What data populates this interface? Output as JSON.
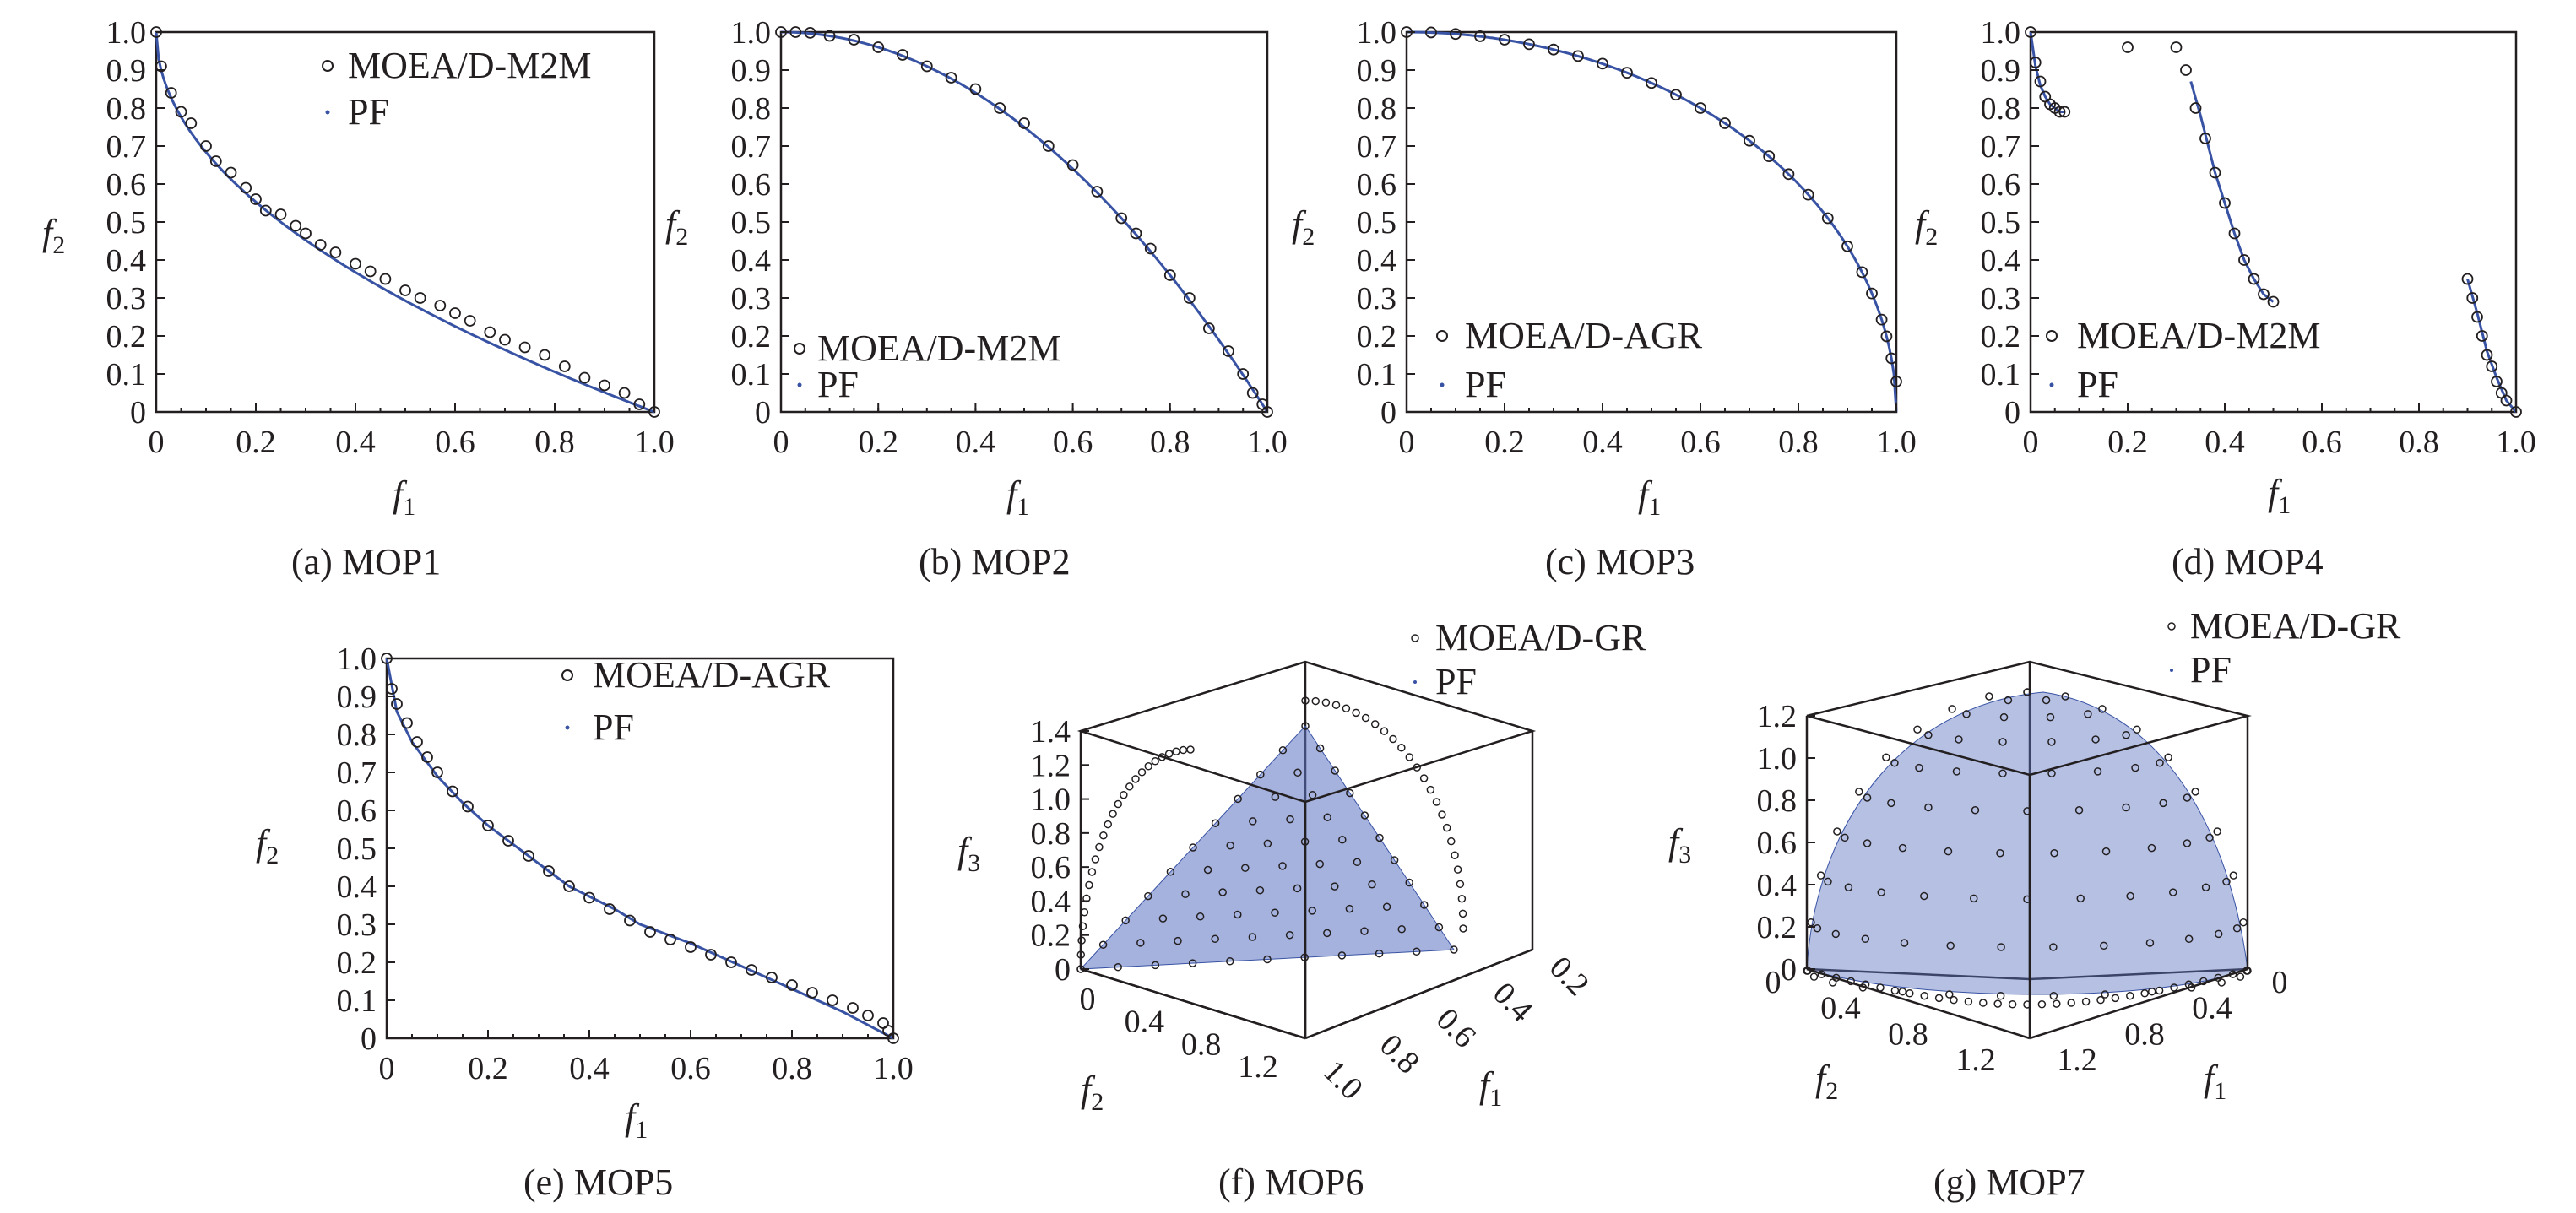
{
  "colors": {
    "pf": "#3953a4",
    "marker": "#231f20",
    "surface": "#5b73c1"
  },
  "chart_data": [
    {
      "type": "scatter",
      "caption": "(a) MOP1",
      "xlabel": "f",
      "xlabel_sub": "1",
      "ylabel": "f",
      "ylabel_sub": "2",
      "xlim": [
        0,
        1
      ],
      "ylim": [
        0,
        1
      ],
      "xticks": [
        "0",
        "0.2",
        "0.4",
        "0.6",
        "0.8",
        "1.0"
      ],
      "yticks": [
        "0",
        "0.1",
        "0.2",
        "0.3",
        "0.4",
        "0.5",
        "0.6",
        "0.7",
        "0.8",
        "0.9",
        "1.0"
      ],
      "legend": [
        "MOEA/D-M2M",
        "PF"
      ],
      "legend_position": "top-right",
      "series": [
        {
          "name": "MOEA/D-M2M",
          "x": [
            0,
            0.01,
            0.03,
            0.05,
            0.07,
            0.1,
            0.12,
            0.15,
            0.18,
            0.2,
            0.22,
            0.25,
            0.28,
            0.3,
            0.33,
            0.36,
            0.4,
            0.43,
            0.46,
            0.5,
            0.53,
            0.57,
            0.6,
            0.63,
            0.67,
            0.7,
            0.74,
            0.78,
            0.82,
            0.86,
            0.9,
            0.94,
            0.97,
            1.0
          ],
          "y": [
            1.0,
            0.91,
            0.84,
            0.79,
            0.76,
            0.7,
            0.66,
            0.63,
            0.59,
            0.56,
            0.53,
            0.52,
            0.49,
            0.47,
            0.44,
            0.42,
            0.39,
            0.37,
            0.35,
            0.32,
            0.3,
            0.28,
            0.26,
            0.24,
            0.21,
            0.19,
            0.17,
            0.15,
            0.12,
            0.09,
            0.07,
            0.05,
            0.02,
            0.0
          ]
        },
        {
          "name": "PF",
          "function": "1 - sqrt(x)"
        }
      ]
    },
    {
      "type": "scatter",
      "caption": "(b) MOP2",
      "xlabel": "f",
      "xlabel_sub": "1",
      "ylabel": "f",
      "ylabel_sub": "2",
      "xlim": [
        0,
        1
      ],
      "ylim": [
        0,
        1
      ],
      "xticks": [
        "0",
        "0.2",
        "0.4",
        "0.6",
        "0.8",
        "1.0"
      ],
      "yticks": [
        "0",
        "0.1",
        "0.2",
        "0.3",
        "0.4",
        "0.5",
        "0.6",
        "0.7",
        "0.8",
        "0.9",
        "1.0"
      ],
      "legend": [
        "MOEA/D-M2M",
        "PF"
      ],
      "legend_position": "bottom-left",
      "series": [
        {
          "name": "MOEA/D-M2M",
          "x": [
            0,
            0.03,
            0.06,
            0.1,
            0.15,
            0.2,
            0.25,
            0.3,
            0.35,
            0.4,
            0.45,
            0.5,
            0.55,
            0.6,
            0.65,
            0.7,
            0.73,
            0.76,
            0.8,
            0.84,
            0.88,
            0.92,
            0.95,
            0.97,
            0.99,
            1.0
          ],
          "y": [
            1.0,
            1.0,
            0.998,
            0.99,
            0.98,
            0.96,
            0.94,
            0.91,
            0.88,
            0.85,
            0.8,
            0.76,
            0.7,
            0.65,
            0.58,
            0.51,
            0.47,
            0.43,
            0.36,
            0.3,
            0.22,
            0.16,
            0.1,
            0.05,
            0.02,
            0.0
          ]
        },
        {
          "name": "PF",
          "function": "1 - x^2"
        }
      ]
    },
    {
      "type": "scatter",
      "caption": "(c) MOP3",
      "xlabel": "f",
      "xlabel_sub": "1",
      "ylabel": "f",
      "ylabel_sub": "2",
      "xlim": [
        0,
        1
      ],
      "ylim": [
        0,
        1
      ],
      "xticks": [
        "0",
        "0.2",
        "0.4",
        "0.6",
        "0.8",
        "1.0"
      ],
      "yticks": [
        "0",
        "0.1",
        "0.2",
        "0.3",
        "0.4",
        "0.5",
        "0.6",
        "0.7",
        "0.8",
        "0.9",
        "1.0"
      ],
      "legend": [
        "MOEA/D-AGR",
        "PF"
      ],
      "legend_position": "bottom-left",
      "series": [
        {
          "name": "MOEA/D-AGR",
          "x": [
            0,
            0.05,
            0.1,
            0.15,
            0.2,
            0.25,
            0.3,
            0.35,
            0.4,
            0.45,
            0.5,
            0.55,
            0.6,
            0.65,
            0.7,
            0.74,
            0.78,
            0.82,
            0.86,
            0.9,
            0.93,
            0.95,
            0.97,
            0.98,
            0.99,
            1.0
          ],
          "y": [
            1.0,
            0.999,
            0.995,
            0.989,
            0.98,
            0.968,
            0.954,
            0.937,
            0.917,
            0.893,
            0.866,
            0.835,
            0.8,
            0.76,
            0.714,
            0.673,
            0.626,
            0.572,
            0.51,
            0.436,
            0.368,
            0.312,
            0.243,
            0.199,
            0.141,
            0.08
          ]
        },
        {
          "name": "PF",
          "function": "sqrt(1 - x^2)"
        }
      ]
    },
    {
      "type": "scatter",
      "caption": "(d) MOP4",
      "xlabel": "f",
      "xlabel_sub": "1",
      "ylabel": "f",
      "ylabel_sub": "2",
      "xlim": [
        0,
        1
      ],
      "ylim": [
        0,
        1
      ],
      "xticks": [
        "0",
        "0.2",
        "0.4",
        "0.6",
        "0.8",
        "1.0"
      ],
      "yticks": [
        "0",
        "0.1",
        "0.2",
        "0.3",
        "0.4",
        "0.5",
        "0.6",
        "0.7",
        "0.8",
        "0.9",
        "1.0"
      ],
      "legend": [
        "MOEA/D-M2M",
        "PF"
      ],
      "legend_position": "bottom-left",
      "series": [
        {
          "name": "MOEA/D-M2M",
          "x": [
            0,
            0.01,
            0.02,
            0.03,
            0.04,
            0.05,
            0.06,
            0.07,
            0.2,
            0.3,
            0.32,
            0.34,
            0.36,
            0.38,
            0.4,
            0.42,
            0.44,
            0.46,
            0.48,
            0.5,
            0.9,
            0.91,
            0.92,
            0.93,
            0.94,
            0.95,
            0.96,
            0.97,
            0.98,
            1.0
          ],
          "y": [
            1.0,
            0.92,
            0.87,
            0.83,
            0.81,
            0.8,
            0.79,
            0.79,
            0.96,
            0.96,
            0.9,
            0.8,
            0.72,
            0.63,
            0.55,
            0.47,
            0.4,
            0.35,
            0.31,
            0.29,
            0.35,
            0.3,
            0.25,
            0.2,
            0.15,
            0.12,
            0.08,
            0.05,
            0.03,
            0.0
          ]
        },
        {
          "name": "PF",
          "segments": [
            {
              "x": [
                0,
                0.01,
                0.02,
                0.03,
                0.04,
                0.05,
                0.06,
                0.07
              ],
              "y": [
                1.0,
                0.91,
                0.86,
                0.83,
                0.81,
                0.8,
                0.79,
                0.79
              ]
            },
            {
              "x": [
                0.33,
                0.35,
                0.38,
                0.4,
                0.42,
                0.44,
                0.46,
                0.48,
                0.5
              ],
              "y": [
                0.87,
                0.78,
                0.63,
                0.55,
                0.47,
                0.4,
                0.35,
                0.31,
                0.29
              ]
            },
            {
              "x": [
                0.9,
                0.92,
                0.94,
                0.96,
                0.98,
                1.0
              ],
              "y": [
                0.35,
                0.26,
                0.16,
                0.09,
                0.03,
                0.0
              ]
            }
          ]
        }
      ]
    },
    {
      "type": "scatter",
      "caption": "(e) MOP5",
      "xlabel": "f",
      "xlabel_sub": "1",
      "ylabel": "f",
      "ylabel_sub": "2",
      "xlim": [
        0,
        1
      ],
      "ylim": [
        0,
        1
      ],
      "xticks": [
        "0",
        "0.2",
        "0.4",
        "0.6",
        "0.8",
        "1.0"
      ],
      "yticks": [
        "0",
        "0.1",
        "0.2",
        "0.3",
        "0.4",
        "0.5",
        "0.6",
        "0.7",
        "0.8",
        "0.9",
        "1.0"
      ],
      "legend": [
        "MOEA/D-AGR",
        "PF"
      ],
      "legend_position": "top-right",
      "series": [
        {
          "name": "MOEA/D-AGR",
          "x": [
            0,
            0.01,
            0.02,
            0.04,
            0.06,
            0.08,
            0.1,
            0.13,
            0.16,
            0.2,
            0.24,
            0.28,
            0.32,
            0.36,
            0.4,
            0.44,
            0.48,
            0.52,
            0.56,
            0.6,
            0.64,
            0.68,
            0.72,
            0.76,
            0.8,
            0.84,
            0.88,
            0.92,
            0.95,
            0.98,
            0.99,
            1.0
          ],
          "y": [
            1.0,
            0.92,
            0.88,
            0.83,
            0.78,
            0.74,
            0.7,
            0.65,
            0.61,
            0.56,
            0.52,
            0.48,
            0.44,
            0.4,
            0.37,
            0.34,
            0.31,
            0.28,
            0.26,
            0.24,
            0.22,
            0.2,
            0.18,
            0.16,
            0.14,
            0.12,
            0.1,
            0.08,
            0.06,
            0.04,
            0.02,
            0.0
          ]
        },
        {
          "name": "PF",
          "x": [
            0,
            0.02,
            0.05,
            0.1,
            0.15,
            0.2,
            0.3,
            0.36,
            0.45,
            0.5,
            0.6,
            0.7,
            0.8,
            0.9,
            1.0
          ],
          "y": [
            1.0,
            0.86,
            0.78,
            0.69,
            0.62,
            0.56,
            0.46,
            0.4,
            0.34,
            0.3,
            0.25,
            0.19,
            0.13,
            0.07,
            0.0
          ]
        }
      ]
    },
    {
      "type": "scatter",
      "caption": "(f) MOP6",
      "xlabel": "f",
      "xlabel_sub": "1",
      "ylabel": "f",
      "ylabel_sub": "2",
      "zlabel": "f",
      "zlabel_sub": "3",
      "xticks": [
        "0.2",
        "0.4",
        "0.6",
        "0.8",
        "1.0"
      ],
      "yticks": [
        "0",
        "0.4",
        "0.8",
        "1.2"
      ],
      "zticks": [
        "0",
        "0.2",
        "0.4",
        "0.6",
        "0.8",
        "1.0",
        "1.2",
        "1.4"
      ],
      "legend": [
        "MOEA/D-GR",
        "PF"
      ],
      "legend_position": "top-right",
      "series": [
        {
          "name": "MOEA/D-GR",
          "surface": "plane f1 + f2 + f3 = 1"
        },
        {
          "name": "PF",
          "surface": "plane f1 + f2 + f3 = 1"
        }
      ]
    },
    {
      "type": "scatter",
      "caption": "(g) MOP7",
      "xlabel": "f",
      "xlabel_sub": "1",
      "ylabel": "f",
      "ylabel_sub": "2",
      "zlabel": "f",
      "zlabel_sub": "3",
      "xticks": [
        "0",
        "0.4",
        "0.8",
        "1.2"
      ],
      "yticks": [
        "0",
        "0.4",
        "0.8",
        "1.2"
      ],
      "zticks": [
        "0",
        "0.2",
        "0.4",
        "0.6",
        "0.8",
        "1.0",
        "1.2"
      ],
      "legend": [
        "MOEA/D-GR",
        "PF"
      ],
      "legend_position": "top-right",
      "series": [
        {
          "name": "MOEA/D-GR",
          "surface": "sphere f1^2 + f2^2 + f3^2 = 1"
        },
        {
          "name": "PF",
          "surface": "sphere f1^2 + f2^2 + f3^2 = 1"
        }
      ]
    }
  ]
}
